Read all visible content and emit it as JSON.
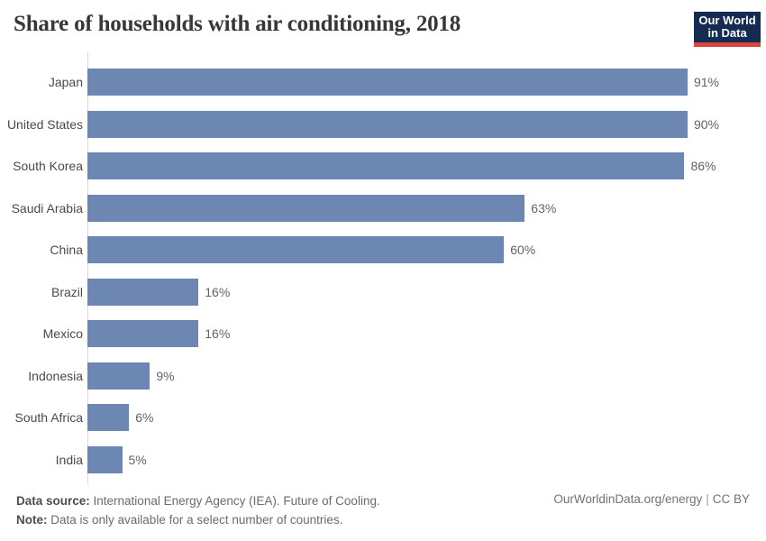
{
  "title": "Share of households with air conditioning, 2018",
  "logo": {
    "line1": "Our World",
    "line2": "in Data"
  },
  "chart_data": {
    "type": "bar",
    "orientation": "horizontal",
    "title": "Share of households with air conditioning, 2018",
    "categories": [
      "Japan",
      "United States",
      "South Korea",
      "Saudi Arabia",
      "China",
      "Brazil",
      "Mexico",
      "Indonesia",
      "South Africa",
      "India"
    ],
    "values": [
      91,
      90,
      86,
      63,
      60,
      16,
      16,
      9,
      6,
      5
    ],
    "value_labels": [
      "91%",
      "90%",
      "86%",
      "63%",
      "60%",
      "16%",
      "16%",
      "9%",
      "6%",
      "5%"
    ],
    "unit": "%",
    "xlim": [
      0,
      91
    ],
    "grid": false,
    "legend": "none",
    "bar_color": "#6d87b3"
  },
  "colors": {
    "bar": "#6d87b3",
    "logo_background": "#142b52",
    "logo_accent": "#d7443c",
    "axis_line": "#dadada"
  },
  "footer": {
    "source_label": "Data source:",
    "source_text": " International Energy Agency (IEA). Future of Cooling.",
    "note_label": "Note:",
    "note_text": " Data is only available for a select number of countries.",
    "link": "OurWorldinData.org/energy",
    "separator": "|",
    "license": "CC BY"
  }
}
